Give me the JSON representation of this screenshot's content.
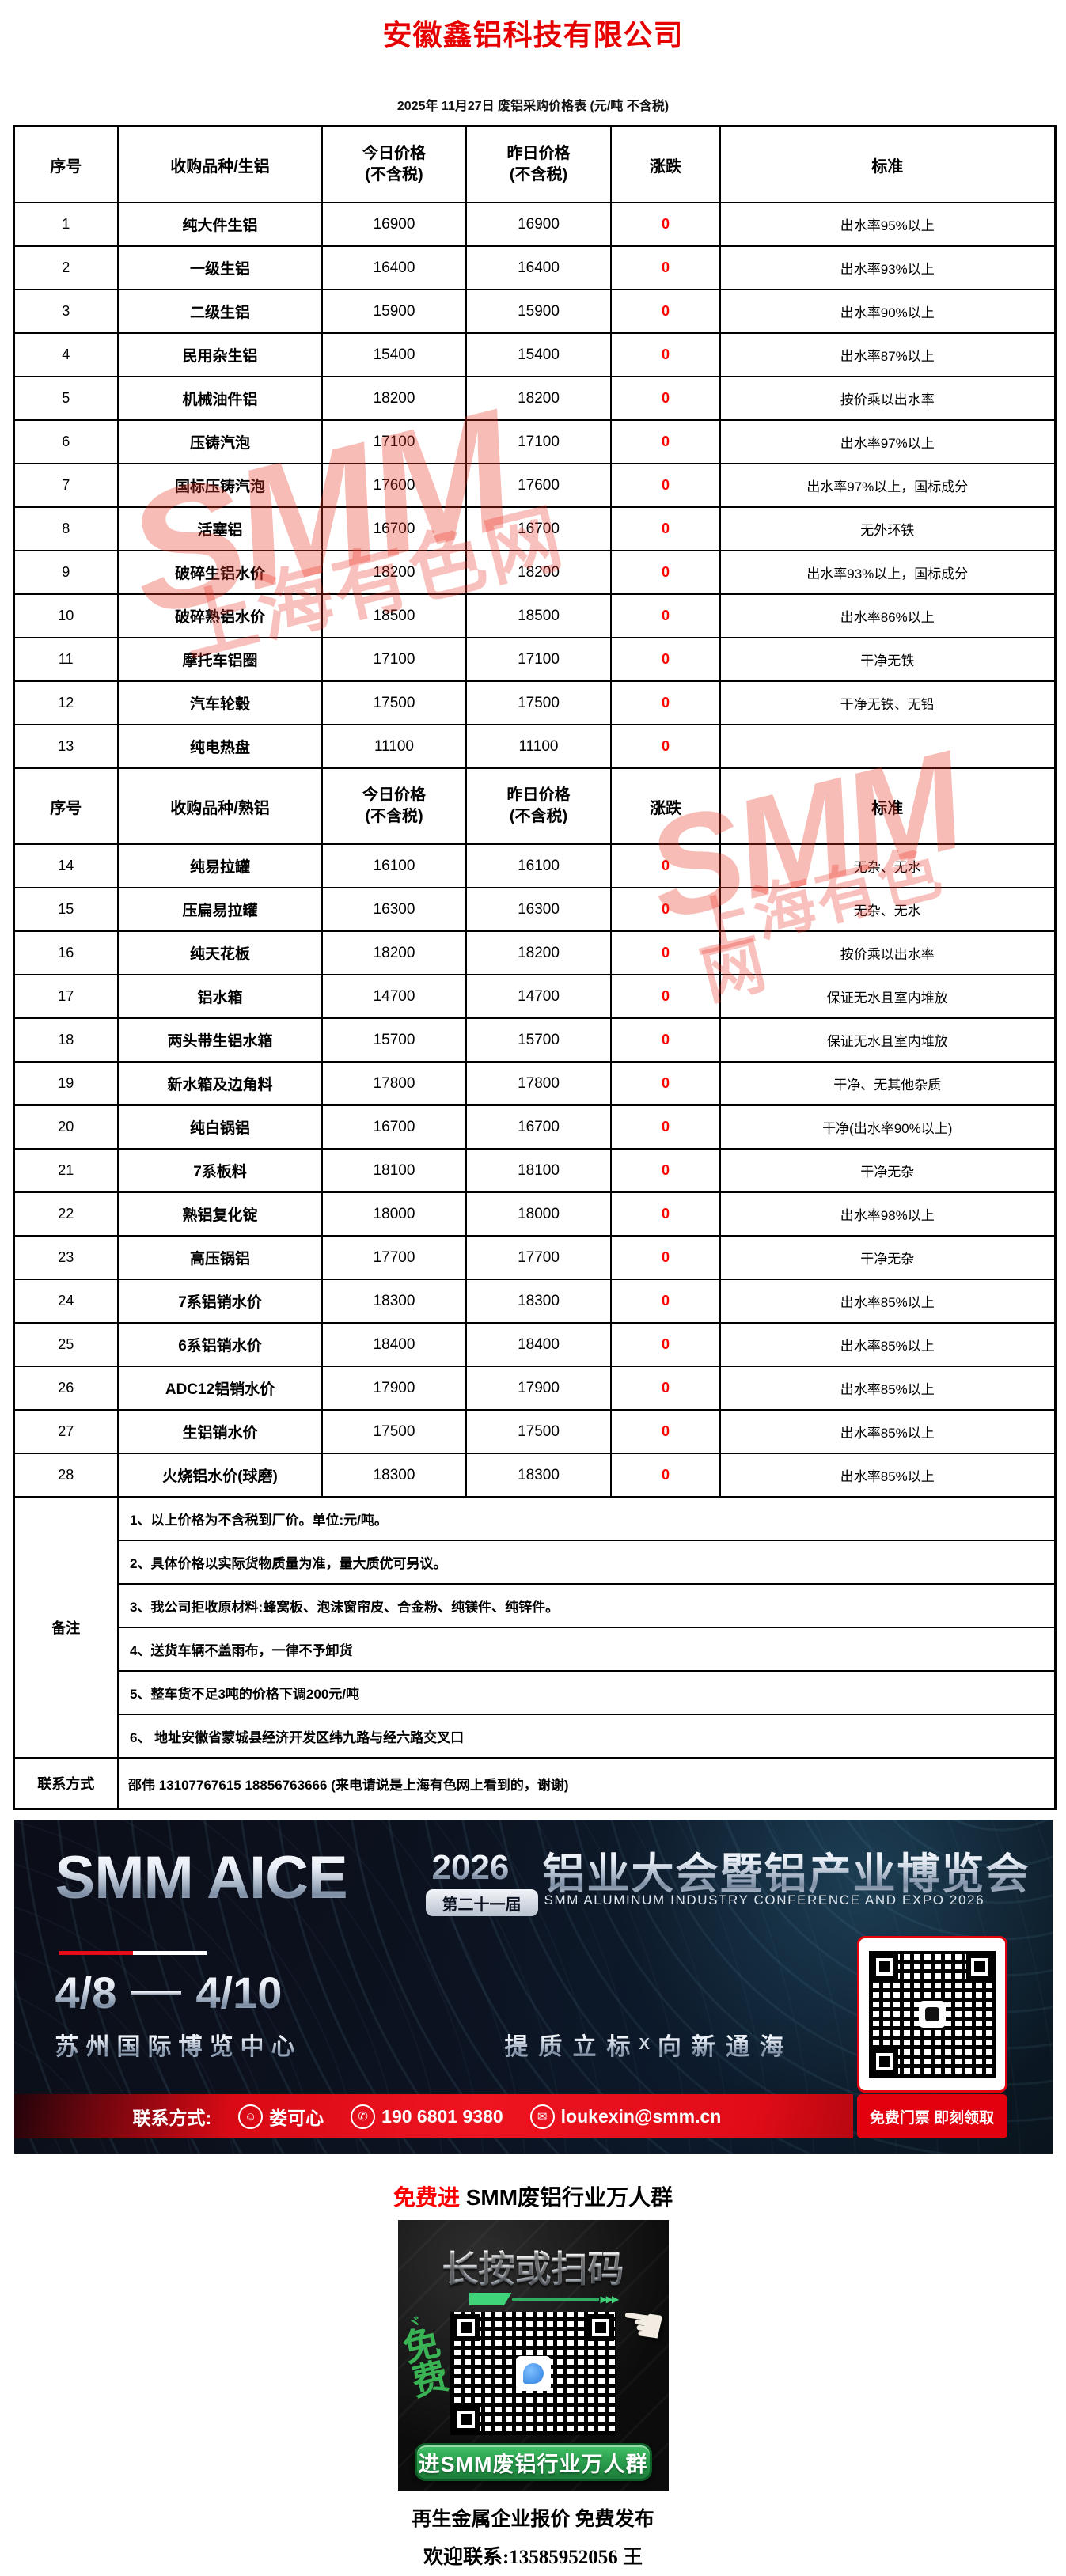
{
  "page": {
    "title": "安徽鑫铝科技有限公司",
    "subtitle": "2025年 11月27日 废铝采购价格表 (元/吨 不含税)"
  },
  "colors": {
    "title_red": "#e60000",
    "change_red": "#ff0000",
    "watermark_red": "#ea3323",
    "banner_red": "#e2000e",
    "group_green": "#27994a"
  },
  "watermark": {
    "brand": "SMM",
    "site": "上海有色网"
  },
  "table": {
    "header1": {
      "no": "序号",
      "variety": "收购品种/生铝",
      "today": "今日价格",
      "today2": "(不含税)",
      "yesterday": "昨日价格",
      "yesterday2": "(不含税)",
      "change": "涨跌",
      "standard": "标准"
    },
    "header2": {
      "no": "序号",
      "variety": "收购品种/熟铝",
      "today": "今日价格",
      "today2": "(不含税)",
      "yesterday": "昨日价格",
      "yesterday2": "(不含税)",
      "change": "涨跌",
      "standard": "标准"
    },
    "rows_raw": [
      {
        "no": "1",
        "name": "纯大件生铝",
        "today": "16900",
        "yesterday": "16900",
        "change": "0",
        "standard": "出水率95%以上"
      },
      {
        "no": "2",
        "name": "一级生铝",
        "today": "16400",
        "yesterday": "16400",
        "change": "0",
        "standard": "出水率93%以上"
      },
      {
        "no": "3",
        "name": "二级生铝",
        "today": "15900",
        "yesterday": "15900",
        "change": "0",
        "standard": "出水率90%以上"
      },
      {
        "no": "4",
        "name": "民用杂生铝",
        "today": "15400",
        "yesterday": "15400",
        "change": "0",
        "standard": "出水率87%以上"
      },
      {
        "no": "5",
        "name": "机械油件铝",
        "today": "18200",
        "yesterday": "18200",
        "change": "0",
        "standard": "按价乘以出水率"
      },
      {
        "no": "6",
        "name": "压铸汽泡",
        "today": "17100",
        "yesterday": "17100",
        "change": "0",
        "standard": "出水率97%以上"
      },
      {
        "no": "7",
        "name": "国标压铸汽泡",
        "today": "17600",
        "yesterday": "17600",
        "change": "0",
        "standard": "出水率97%以上，国标成分"
      },
      {
        "no": "8",
        "name": "活塞铝",
        "today": "16700",
        "yesterday": "16700",
        "change": "0",
        "standard": "无外环铁"
      },
      {
        "no": "9",
        "name": "破碎生铝水价",
        "today": "18200",
        "yesterday": "18200",
        "change": "0",
        "standard": "出水率93%以上，国标成分"
      },
      {
        "no": "10",
        "name": "破碎熟铝水价",
        "today": "18500",
        "yesterday": "18500",
        "change": "0",
        "standard": "出水率86%以上"
      },
      {
        "no": "11",
        "name": "摩托车铝圈",
        "today": "17100",
        "yesterday": "17100",
        "change": "0",
        "standard": "干净无铁"
      },
      {
        "no": "12",
        "name": "汽车轮毂",
        "today": "17500",
        "yesterday": "17500",
        "change": "0",
        "standard": "干净无铁、无铅"
      },
      {
        "no": "13",
        "name": "纯电热盘",
        "today": "11100",
        "yesterday": "11100",
        "change": "0",
        "standard": ""
      }
    ],
    "rows_cooked": [
      {
        "no": "14",
        "name": "纯易拉罐",
        "today": "16100",
        "yesterday": "16100",
        "change": "0",
        "standard": "无杂、无水"
      },
      {
        "no": "15",
        "name": "压扁易拉罐",
        "today": "16300",
        "yesterday": "16300",
        "change": "0",
        "standard": "无杂、无水"
      },
      {
        "no": "16",
        "name": "纯天花板",
        "today": "18200",
        "yesterday": "18200",
        "change": "0",
        "standard": "按价乘以出水率"
      },
      {
        "no": "17",
        "name": "铝水箱",
        "today": "14700",
        "yesterday": "14700",
        "change": "0",
        "standard": "保证无水且室内堆放"
      },
      {
        "no": "18",
        "name": "两头带生铝水箱",
        "today": "15700",
        "yesterday": "15700",
        "change": "0",
        "standard": "保证无水且室内堆放"
      },
      {
        "no": "19",
        "name": "新水箱及边角料",
        "today": "17800",
        "yesterday": "17800",
        "change": "0",
        "standard": "干净、无其他杂质"
      },
      {
        "no": "20",
        "name": "纯白锅铝",
        "today": "16700",
        "yesterday": "16700",
        "change": "0",
        "standard": "干净(出水率90%以上)"
      },
      {
        "no": "21",
        "name": "7系板料",
        "today": "18100",
        "yesterday": "18100",
        "change": "0",
        "standard": "干净无杂"
      },
      {
        "no": "22",
        "name": "熟铝复化锭",
        "today": "18000",
        "yesterday": "18000",
        "change": "0",
        "standard": "出水率98%以上"
      },
      {
        "no": "23",
        "name": "高压锅铝",
        "today": "17700",
        "yesterday": "17700",
        "change": "0",
        "standard": "干净无杂"
      },
      {
        "no": "24",
        "name": "7系铝销水价",
        "today": "18300",
        "yesterday": "18300",
        "change": "0",
        "standard": "出水率85%以上"
      },
      {
        "no": "25",
        "name": "6系铝销水价",
        "today": "18400",
        "yesterday": "18400",
        "change": "0",
        "standard": "出水率85%以上"
      },
      {
        "no": "26",
        "name": "ADC12铝销水价",
        "today": "17900",
        "yesterday": "17900",
        "change": "0",
        "standard": "出水率85%以上"
      },
      {
        "no": "27",
        "name": "生铝销水价",
        "today": "17500",
        "yesterday": "17500",
        "change": "0",
        "standard": "出水率85%以上"
      },
      {
        "no": "28",
        "name": "火烧铝水价(球磨)",
        "today": "18300",
        "yesterday": "18300",
        "change": "0",
        "standard": "出水率85%以上"
      }
    ],
    "notes_label": "备注",
    "notes": [
      "1、以上价格为不含税到厂价。单位:元/吨。",
      "2、具体价格以实际货物质量为准，量大质优可另议。",
      "3、我公司拒收原材料:蜂窝板、泡沫窗帘皮、合金粉、纯镁件、纯锌件。",
      "4、送货车辆不盖雨布，一律不予卸货",
      "5、整车货不足3吨的价格下调200元/吨",
      "6、 地址安徽省蒙城县经济开发区纬九路与经六路交叉口"
    ],
    "contact_label": "联系方式",
    "contact_value": "邵伟 13107767615 18856763666  (来电请说是上海有色网上看到的，谢谢)"
  },
  "banner": {
    "logo": "SMM AICE",
    "year": "2026",
    "edition": "第二十一届",
    "title_cn": "铝业大会暨铝产业博览会",
    "title_en": "SMM ALUMINUM INDUSTRY CONFERENCE AND EXPO 2026",
    "date_from": "4/8",
    "date_to": "4/10",
    "venue": "苏州国际博览中心",
    "slogan_left": "提质立标",
    "slogan_x": "X",
    "slogan_right": "向新通海",
    "contact_label": "联系方式:",
    "contact_name": "娄可心",
    "contact_phone": "190 6801 9380",
    "contact_email": "loukexin@smm.cn",
    "ticket": "免费门票 即刻领取",
    "person_glyph": "☺",
    "phone_glyph": "✆",
    "mail_glyph": "✉"
  },
  "group": {
    "heading_red": "免费进",
    "heading_black": " SMM废铝行业万人群",
    "card_title": "长按或扫码",
    "free_vertical_1": "免",
    "free_vertical_2": "费",
    "spark": "ヾ",
    "arrow_tips": "▶▶▶",
    "hand_glyph": "☚",
    "button": "进SMM废铝行业万人群",
    "footer_line1": "再生金属企业报价  免费发布",
    "footer_line2": "欢迎联系:13585952056  王"
  }
}
